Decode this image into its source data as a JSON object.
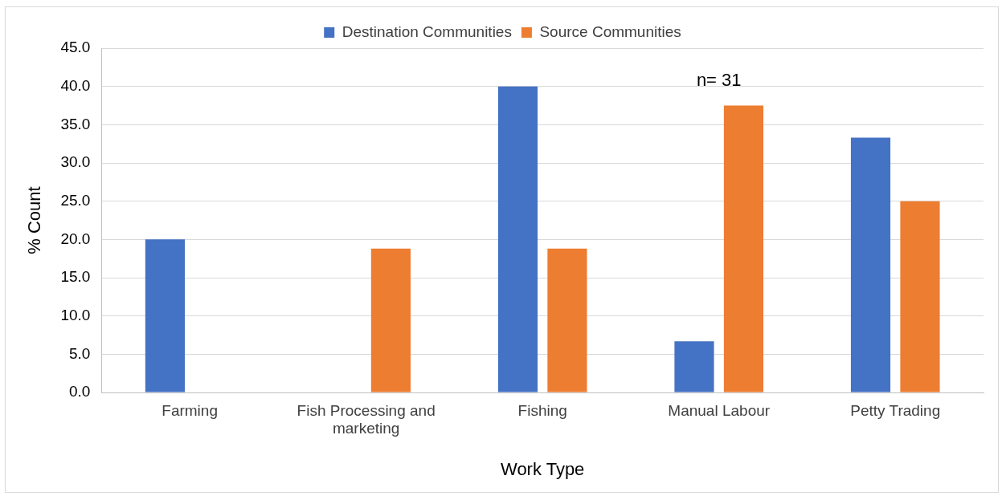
{
  "chart_data": {
    "type": "bar",
    "xlabel": "Work Type",
    "ylabel": "% Count",
    "categories": [
      "Farming",
      "Fish Processing and marketing",
      "Fishing",
      "Manual Labour",
      "Petty Trading"
    ],
    "series": [
      {
        "name": "Destination Communities",
        "color": "#4472c4",
        "values": [
          20.0,
          0,
          40.0,
          6.7,
          33.3
        ]
      },
      {
        "name": "Source Communities",
        "color": "#ed7d31",
        "values": [
          0,
          18.8,
          18.8,
          37.5,
          25.0
        ]
      }
    ],
    "ylim": [
      0,
      45
    ],
    "yticks": [
      {
        "value": 0,
        "label": "0.0"
      },
      {
        "value": 5,
        "label": "5.0"
      },
      {
        "value": 10,
        "label": "10.0"
      },
      {
        "value": 15,
        "label": "15.0"
      },
      {
        "value": 20,
        "label": "20.0"
      },
      {
        "value": 25,
        "label": "25.0"
      },
      {
        "value": 30,
        "label": "30.0"
      },
      {
        "value": 35,
        "label": "35.0"
      },
      {
        "value": 40,
        "label": "40.0"
      },
      {
        "value": 45,
        "label": "45.0"
      }
    ],
    "grid": "y",
    "legend": "top",
    "annotations": [
      "n= 31"
    ]
  }
}
